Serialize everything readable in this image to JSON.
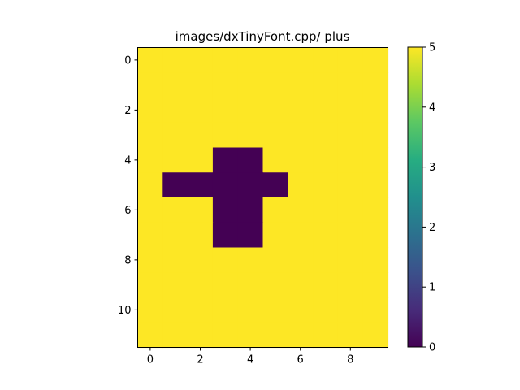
{
  "chart_data": {
    "type": "heatmap",
    "title": "images/dxTinyFont.cpp/ plus",
    "xlabel": "",
    "ylabel": "",
    "n_cols": 10,
    "n_rows": 12,
    "x_ticks": [
      0,
      2,
      4,
      6,
      8
    ],
    "y_ticks": [
      0,
      2,
      4,
      6,
      8,
      10
    ],
    "colormap": "viridis",
    "colorbar": {
      "range": [
        0,
        5
      ],
      "ticks": [
        0,
        1,
        2,
        3,
        4,
        5
      ]
    },
    "grid": false,
    "values": [
      [
        5,
        5,
        5,
        5,
        5,
        5,
        5,
        5,
        5,
        5
      ],
      [
        5,
        5,
        5,
        5,
        5,
        5,
        5,
        5,
        5,
        5
      ],
      [
        5,
        5,
        5,
        5,
        5,
        5,
        5,
        5,
        5,
        5
      ],
      [
        5,
        5,
        5,
        5,
        5,
        5,
        5,
        5,
        5,
        5
      ],
      [
        5,
        5,
        5,
        0,
        0,
        5,
        5,
        5,
        5,
        5
      ],
      [
        5,
        0,
        0,
        0,
        0,
        0,
        5,
        5,
        5,
        5
      ],
      [
        5,
        5,
        5,
        0,
        0,
        5,
        5,
        5,
        5,
        5
      ],
      [
        5,
        5,
        5,
        0,
        0,
        5,
        5,
        5,
        5,
        5
      ],
      [
        5,
        5,
        5,
        5,
        5,
        5,
        5,
        5,
        5,
        5
      ],
      [
        5,
        5,
        5,
        5,
        5,
        5,
        5,
        5,
        5,
        5
      ],
      [
        5,
        5,
        5,
        5,
        5,
        5,
        5,
        5,
        5,
        5
      ],
      [
        5,
        5,
        5,
        5,
        5,
        5,
        5,
        5,
        5,
        5
      ]
    ]
  }
}
